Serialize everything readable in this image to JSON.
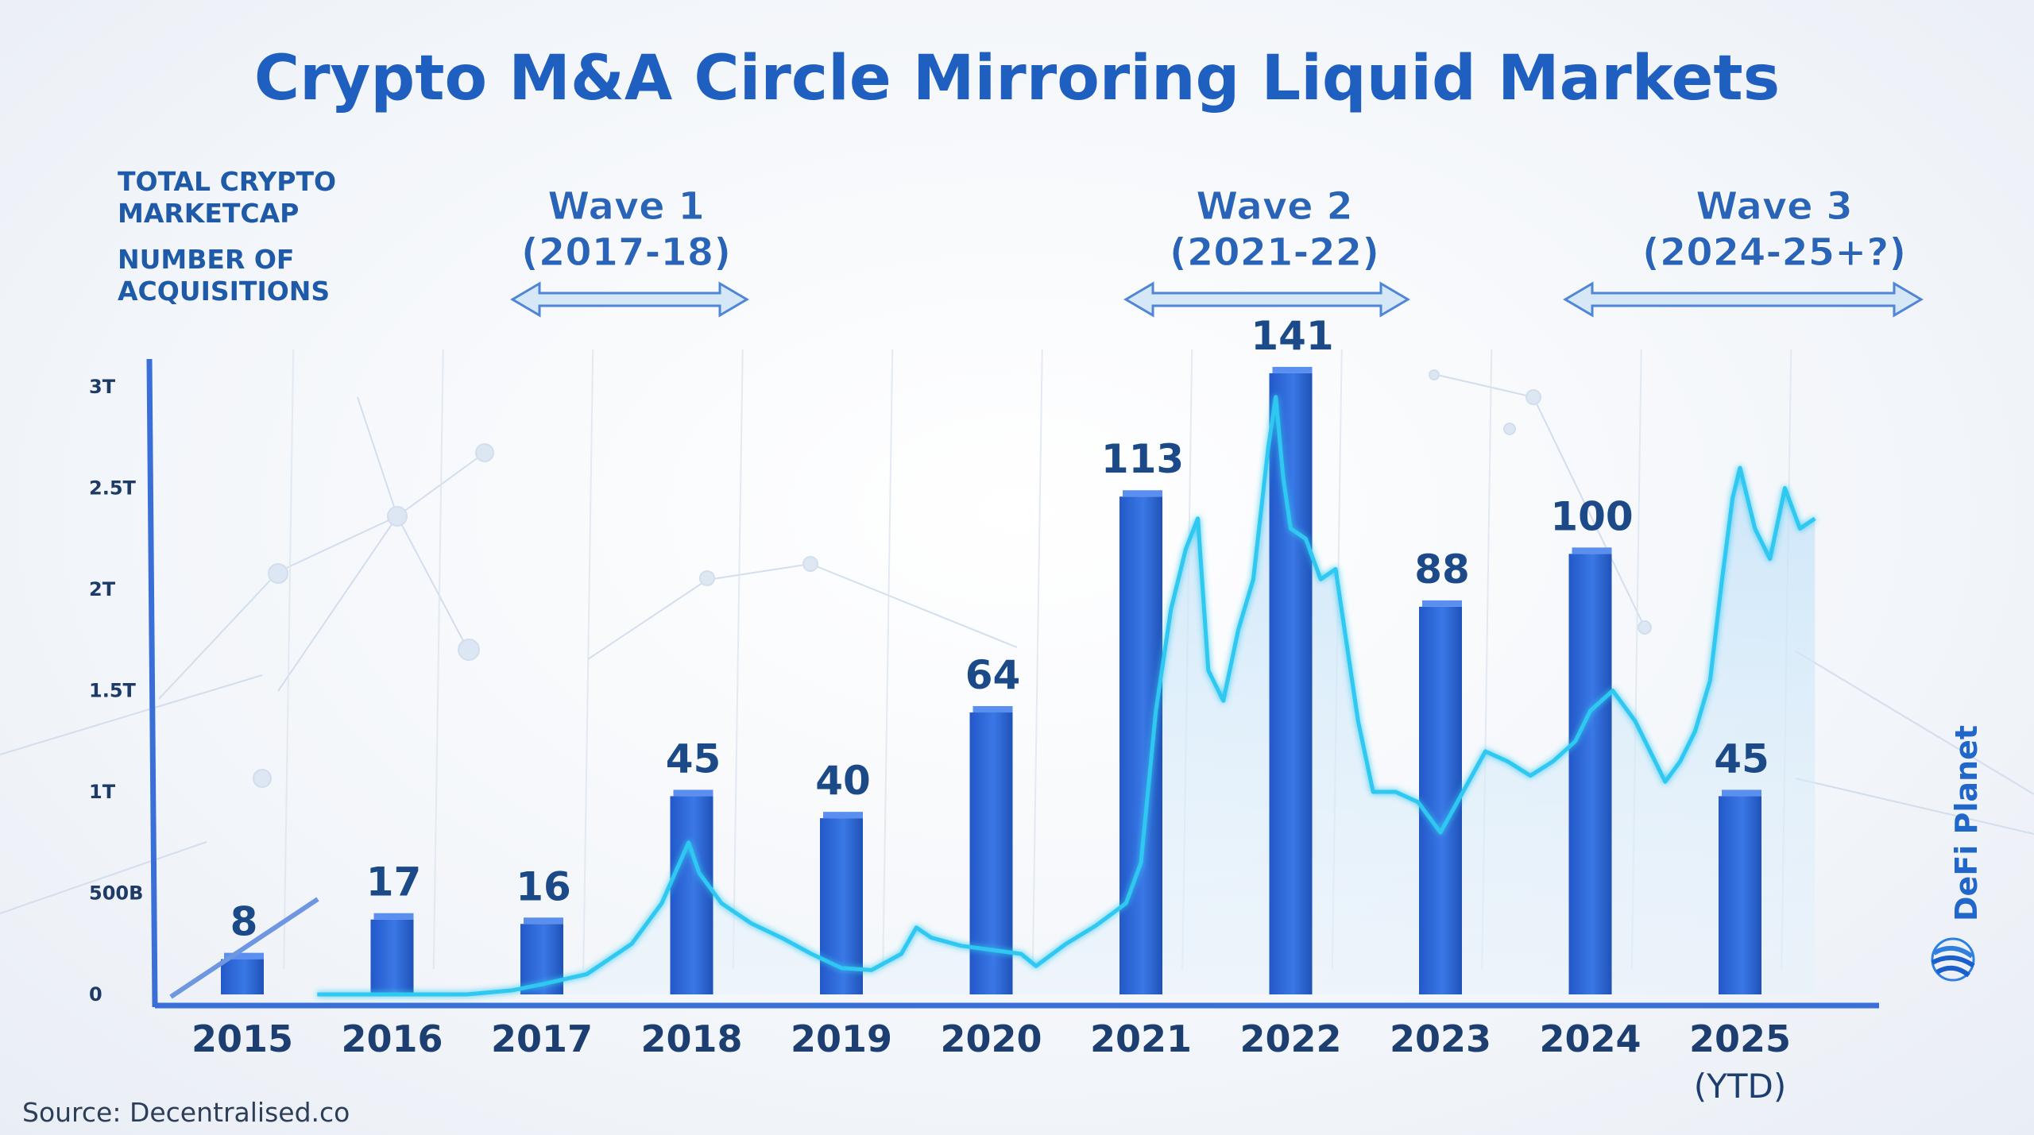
{
  "chart_data": {
    "type": "bar",
    "title": "Crypto M&A Circle Mirroring Liquid Markets",
    "legend": [
      "TOTAL CRYPTO MARKETCAP",
      "NUMBER OF ACQUISITIONS"
    ],
    "categories": [
      "2015",
      "2016",
      "2017",
      "2018",
      "2019",
      "2020",
      "2021",
      "2022",
      "2023",
      "2024",
      "2025"
    ],
    "category_sublabels": [
      "",
      "",
      "",
      "",
      "",
      "",
      "",
      "",
      "",
      "",
      "(YTD)"
    ],
    "series": [
      {
        "name": "NUMBER OF ACQUISITIONS",
        "type": "bar",
        "values": [
          8,
          17,
          16,
          45,
          40,
          64,
          113,
          141,
          88,
          100,
          45
        ],
        "labels": [
          "8",
          "17",
          "16",
          "45",
          "40",
          "64",
          "113",
          "141",
          "88",
          "100",
          "45"
        ],
        "color": "#2a63d4"
      },
      {
        "name": "TOTAL CRYPTO MARKETCAP",
        "type": "line",
        "unit": "USD",
        "color": "#2ec8f0",
        "points": [
          [
            2015.5,
            0
          ],
          [
            2016.0,
            0
          ],
          [
            2016.5,
            0
          ],
          [
            2016.8,
            0.02
          ],
          [
            2017.0,
            0.05
          ],
          [
            2017.3,
            0.1
          ],
          [
            2017.6,
            0.25
          ],
          [
            2017.8,
            0.45
          ],
          [
            2017.98,
            0.75
          ],
          [
            2018.05,
            0.6
          ],
          [
            2018.2,
            0.45
          ],
          [
            2018.4,
            0.35
          ],
          [
            2018.6,
            0.28
          ],
          [
            2018.8,
            0.2
          ],
          [
            2019.0,
            0.13
          ],
          [
            2019.2,
            0.12
          ],
          [
            2019.4,
            0.2
          ],
          [
            2019.5,
            0.33
          ],
          [
            2019.6,
            0.28
          ],
          [
            2019.8,
            0.24
          ],
          [
            2020.0,
            0.22
          ],
          [
            2020.2,
            0.2
          ],
          [
            2020.3,
            0.14
          ],
          [
            2020.5,
            0.25
          ],
          [
            2020.7,
            0.34
          ],
          [
            2020.9,
            0.45
          ],
          [
            2021.0,
            0.65
          ],
          [
            2021.1,
            1.4
          ],
          [
            2021.2,
            1.9
          ],
          [
            2021.3,
            2.2
          ],
          [
            2021.38,
            2.35
          ],
          [
            2021.45,
            1.6
          ],
          [
            2021.55,
            1.45
          ],
          [
            2021.65,
            1.8
          ],
          [
            2021.75,
            2.05
          ],
          [
            2021.85,
            2.7
          ],
          [
            2021.9,
            2.95
          ],
          [
            2021.95,
            2.55
          ],
          [
            2022.0,
            2.3
          ],
          [
            2022.1,
            2.25
          ],
          [
            2022.2,
            2.05
          ],
          [
            2022.3,
            2.1
          ],
          [
            2022.45,
            1.35
          ],
          [
            2022.55,
            1.0
          ],
          [
            2022.7,
            1.0
          ],
          [
            2022.85,
            0.95
          ],
          [
            2023.0,
            0.8
          ],
          [
            2023.15,
            1.0
          ],
          [
            2023.3,
            1.2
          ],
          [
            2023.45,
            1.15
          ],
          [
            2023.6,
            1.08
          ],
          [
            2023.75,
            1.15
          ],
          [
            2023.9,
            1.25
          ],
          [
            2024.0,
            1.4
          ],
          [
            2024.15,
            1.5
          ],
          [
            2024.3,
            1.35
          ],
          [
            2024.4,
            1.2
          ],
          [
            2024.5,
            1.05
          ],
          [
            2024.6,
            1.15
          ],
          [
            2024.7,
            1.3
          ],
          [
            2024.8,
            1.55
          ],
          [
            2024.88,
            2.05
          ],
          [
            2024.95,
            2.45
          ],
          [
            2025.0,
            2.6
          ],
          [
            2025.1,
            2.3
          ],
          [
            2025.2,
            2.15
          ],
          [
            2025.3,
            2.5
          ],
          [
            2025.4,
            2.3
          ],
          [
            2025.5,
            2.35
          ]
        ]
      }
    ],
    "y_axis_marketcap": {
      "ticks": [
        "0",
        "500B",
        "1T",
        "1.5T",
        "2T",
        "2.5T",
        "3T"
      ],
      "ylim": [
        0,
        3
      ]
    },
    "bar_axis": {
      "ylim": [
        0,
        150
      ]
    },
    "annotations": [
      {
        "label_line1": "Wave 1",
        "label_line2": "(2017-18)",
        "range": [
          "2017",
          "2018"
        ]
      },
      {
        "label_line1": "Wave 2",
        "label_line2": "(2021-22)",
        "range": [
          "2021",
          "2022"
        ]
      },
      {
        "label_line1": "Wave 3",
        "label_line2": "(2024-25+?)",
        "range": [
          "2024",
          "2025"
        ]
      }
    ],
    "grid": true,
    "legend_position": "top-left"
  },
  "source": "Source: Decentralised.co",
  "brand": "DeFi Planet",
  "colors": {
    "accent": "#1f5fbf",
    "bar": "#2a63d4",
    "line": "#2ec8f0",
    "area": "#cfe5f8"
  }
}
